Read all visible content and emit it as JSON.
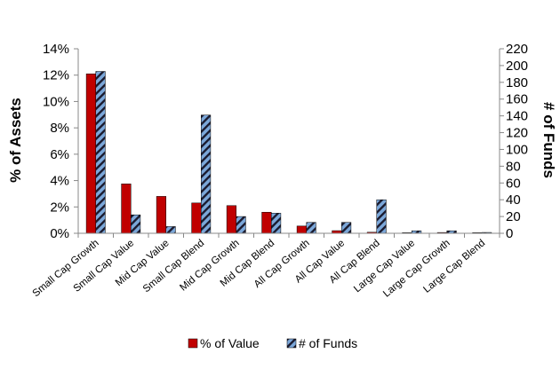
{
  "chart_data": {
    "type": "bar",
    "categories": [
      "Small Cap Growth",
      "Small Cap Value",
      "Mid Cap Value",
      "Small Cap Blend",
      "Mid Cap Growth",
      "Mid Cap Blend",
      "All Cap Growth",
      "All Cap Value",
      "All Cap Blend",
      "Large Cap Value",
      "Large Cap Growth",
      "Large Cap Blend"
    ],
    "series": [
      {
        "name": "% of Value",
        "axis": "left",
        "unit": "percent",
        "color": "#c00000",
        "values": [
          12.1,
          3.75,
          2.8,
          2.3,
          2.1,
          1.6,
          0.55,
          0.2,
          0.08,
          0.05,
          0.06,
          0.05
        ]
      },
      {
        "name": "# of Funds",
        "axis": "right",
        "color": "#7ba7d9",
        "pattern": "diagonal-stripes",
        "values": [
          193,
          22,
          8,
          141,
          20,
          24,
          13,
          13,
          40,
          3,
          3,
          1
        ]
      }
    ],
    "ylabel": "% of Assets",
    "y2label": "# of Funds",
    "ylim": [
      0,
      14
    ],
    "y2lim": [
      0,
      220
    ],
    "yticks": [
      "0%",
      "2%",
      "4%",
      "6%",
      "8%",
      "10%",
      "12%",
      "14%"
    ],
    "y2ticks": [
      "0",
      "20",
      "40",
      "60",
      "80",
      "100",
      "120",
      "140",
      "160",
      "180",
      "200",
      "220"
    ],
    "grid": false,
    "legend_position": "bottom"
  }
}
